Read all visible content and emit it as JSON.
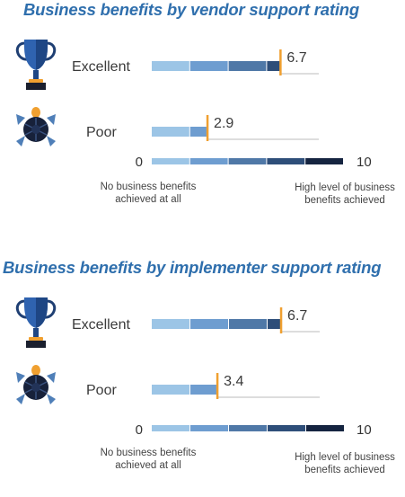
{
  "chart_data": [
    {
      "type": "bar",
      "title": "Business benefits by vendor support rating",
      "categories": [
        "Excellent",
        "Poor"
      ],
      "values": [
        6.7,
        2.9
      ],
      "value_labels": [
        "6.7",
        "2.9"
      ],
      "xlim": [
        0,
        10
      ],
      "scale_min_label": "0",
      "scale_max_label": "10",
      "scale_low_note": [
        "No business benefits",
        "achieved at all"
      ],
      "scale_high_note": [
        "High level of business",
        "benefits achieved"
      ],
      "icons": [
        "trophy-icon",
        "turtle-icon"
      ]
    },
    {
      "type": "bar",
      "title": "Business benefits by implementer support rating",
      "categories": [
        "Excellent",
        "Poor"
      ],
      "values": [
        6.7,
        3.4
      ],
      "value_labels": [
        "6.7",
        "3.4"
      ],
      "xlim": [
        0,
        10
      ],
      "scale_min_label": "0",
      "scale_max_label": "10",
      "scale_low_note": [
        "No business benefits",
        "achieved at all"
      ],
      "scale_high_note": [
        "High level of business",
        "benefits achieved"
      ],
      "icons": [
        "trophy-icon",
        "turtle-icon"
      ]
    }
  ],
  "colors": {
    "title": "#2f6fad",
    "segments": [
      "#9cc5e6",
      "#6e9dd0",
      "#4f78a7",
      "#2e4e79",
      "#152440"
    ],
    "marker": "#f0a030",
    "guide_line": "#bbbbbb"
  }
}
